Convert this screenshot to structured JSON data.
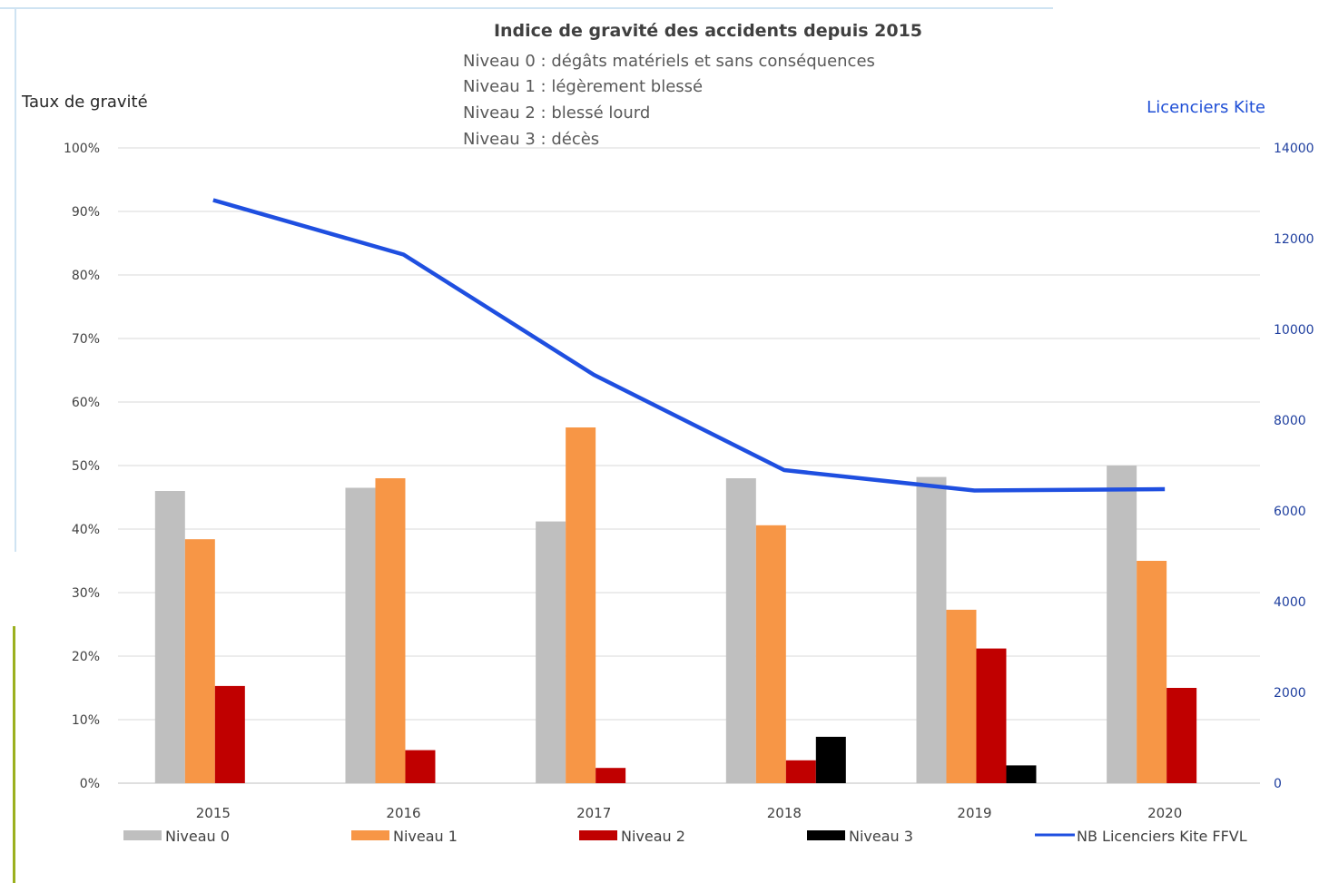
{
  "chart_data": {
    "type": "bar",
    "title": "Indice de gravité des accidents depuis 2015",
    "subtitle_lines": [
      "Niveau 0 : dégâts matériels et sans conséquences",
      "Niveau 1 : légèrement blessé",
      "Niveau 2 : blessé lourd",
      "Niveau 3 : décès"
    ],
    "ylabel": "Taux de gravité",
    "y2label": "Licenciers Kite",
    "categories": [
      "2015",
      "2016",
      "2017",
      "2018",
      "2019",
      "2020"
    ],
    "ylim": [
      0,
      100
    ],
    "y2lim": [
      0,
      14000
    ],
    "yticks": [
      "100%",
      "90%",
      "80%",
      "70%",
      "60%",
      "50%",
      "40%",
      "30%",
      "20%",
      "10%",
      "0%"
    ],
    "y2ticks": [
      "14000",
      "12000",
      "10000",
      "8000",
      "6000",
      "4000",
      "2000",
      "0"
    ],
    "series": [
      {
        "name": "Niveau 0",
        "type": "bar",
        "color": "#bfbfbf",
        "values": [
          46,
          46.5,
          41.2,
          48,
          48.2,
          50
        ]
      },
      {
        "name": "Niveau 1",
        "type": "bar",
        "color": "#f79646",
        "values": [
          38.4,
          48,
          56,
          40.6,
          27.3,
          35
        ]
      },
      {
        "name": "Niveau 2",
        "type": "bar",
        "color": "#c00000",
        "values": [
          15.3,
          5.2,
          2.4,
          3.6,
          21.2,
          15
        ]
      },
      {
        "name": "Niveau 3",
        "type": "bar",
        "color": "#000000",
        "values": [
          0,
          0,
          0,
          7.3,
          2.8,
          0
        ]
      },
      {
        "name": "NB Licenciers Kite FFVL",
        "type": "line",
        "axis": "right",
        "color": "#1f4fe0",
        "values": [
          12850,
          11650,
          9000,
          6900,
          6450,
          6480
        ]
      }
    ],
    "grid": true,
    "legend": "bottom"
  }
}
